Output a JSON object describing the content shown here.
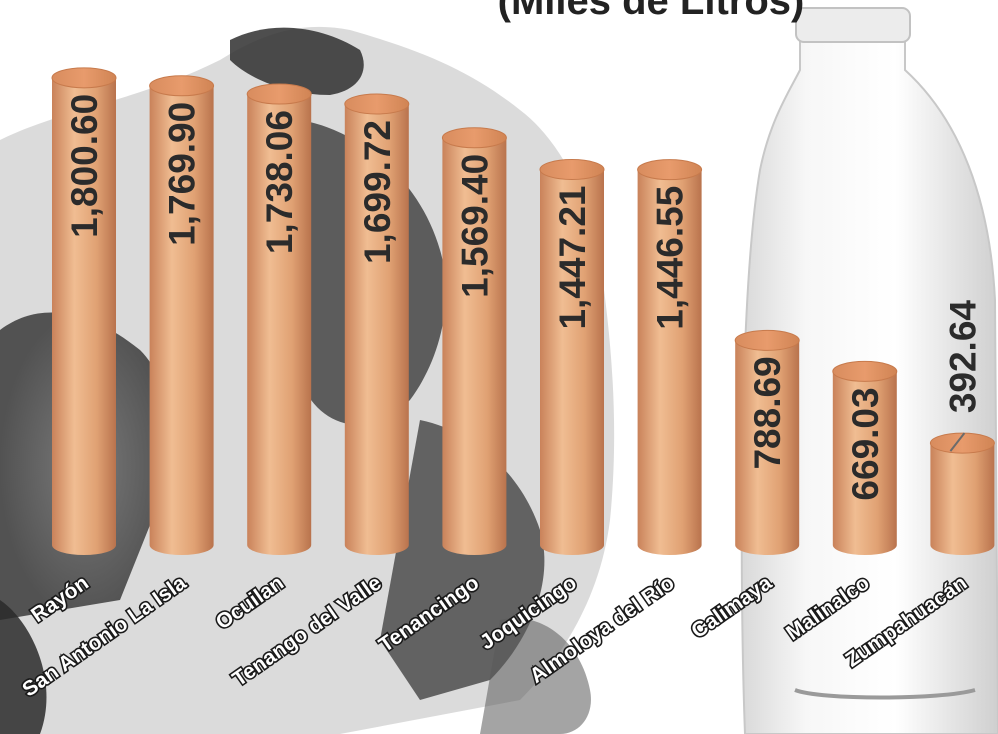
{
  "chart_data": {
    "type": "bar",
    "title": "(Miles de Litros)",
    "xlabel": "",
    "ylabel": "",
    "ylim": [
      0,
      1850
    ],
    "grid": false,
    "legend": "none",
    "bar_color": "#e2a476",
    "categories": [
      "Rayón",
      "San Antonio La Isla",
      "Ocuilan",
      "Tenango del Valle",
      "Tenancingo",
      "Joquicingo",
      "Almoloya del Río",
      "Calimaya",
      "Malinalco",
      "Zumpahuacán"
    ],
    "values": [
      1800.6,
      1769.9,
      1738.06,
      1699.72,
      1569.4,
      1447.21,
      1446.55,
      788.69,
      669.03,
      392.64
    ],
    "value_labels": [
      "1,800.60",
      "1,769.90",
      "1,738.06",
      "1,699.72",
      "1,569.40",
      "1,447.21",
      "1,446.55",
      "788.69",
      "669.03",
      "392.64"
    ]
  }
}
